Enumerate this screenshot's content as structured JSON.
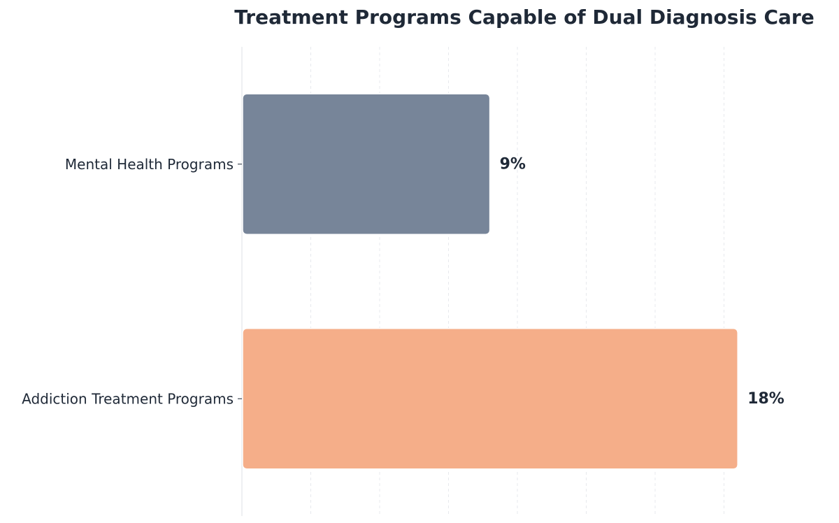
{
  "chart_data": {
    "type": "bar",
    "orientation": "horizontal",
    "title": "Treatment Programs Capable of Dual Diagnosis Care",
    "xlabel": "",
    "ylabel": "",
    "categories": [
      "Mental Health Programs",
      "Addiction Treatment Programs"
    ],
    "values": [
      9,
      18
    ],
    "value_labels": [
      "9%",
      "18%"
    ],
    "xlim": [
      0,
      20
    ],
    "grid": "vertical dashed",
    "legend": "none",
    "colors": [
      "#778599",
      "#f5ae89"
    ],
    "text_color": "#1f2937"
  }
}
